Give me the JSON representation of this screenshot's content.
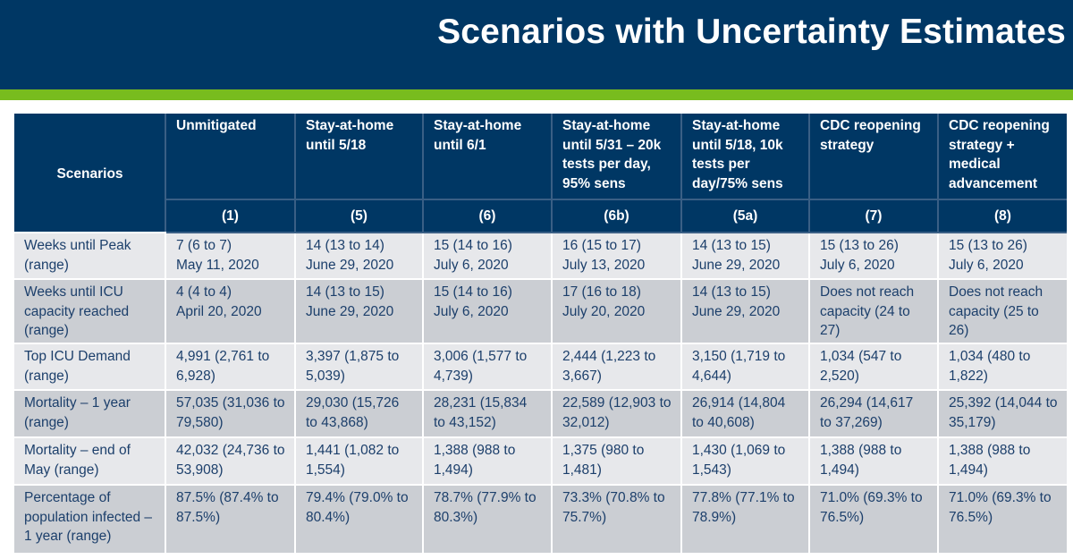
{
  "slide": {
    "title": "Scenarios with Uncertainty Estimates"
  },
  "table": {
    "corner_label": "Scenarios",
    "columns": [
      {
        "name": "Unmitigated",
        "code": "(1)"
      },
      {
        "name": "Stay-at-home until 5/18",
        "code": "(5)"
      },
      {
        "name": "Stay-at-home until 6/1",
        "code": "(6)"
      },
      {
        "name": "Stay-at-home until 5/31 – 20k tests per day, 95% sens",
        "code": "(6b)"
      },
      {
        "name": "Stay-at-home until 5/18, 10k tests per day/75% sens",
        "code": "(5a)"
      },
      {
        "name": "CDC reopening strategy",
        "code": "(7)"
      },
      {
        "name": "CDC reopening strategy + medical advancement",
        "code": "(8)"
      }
    ],
    "rows": [
      {
        "label": "Weeks until Peak (range)",
        "cells": [
          "7 (6 to 7)\nMay 11, 2020",
          "14 (13 to 14)\nJune 29, 2020",
          "15 (14 to 16)\nJuly 6, 2020",
          "16 (15 to 17)\nJuly 13, 2020",
          "14 (13 to 15)\nJune 29, 2020",
          "15 (13 to 26)\nJuly 6, 2020",
          "15 (13 to 26)\nJuly 6, 2020"
        ]
      },
      {
        "label": "Weeks until ICU capacity reached (range)",
        "cells": [
          "4 (4 to 4)\nApril 20, 2020",
          "14 (13 to 15)\nJune 29, 2020",
          "15 (14 to 16)\nJuly 6, 2020",
          "17 (16 to 18)\nJuly 20, 2020",
          "14 (13 to 15)\nJune 29, 2020",
          "Does not reach capacity (24 to 27)",
          "Does not reach capacity (25 to 26)"
        ]
      },
      {
        "label": "Top ICU Demand (range)",
        "cells": [
          "4,991 (2,761 to 6,928)",
          "3,397 (1,875 to 5,039)",
          "3,006 (1,577 to 4,739)",
          "2,444 (1,223 to 3,667)",
          "3,150 (1,719 to 4,644)",
          "1,034 (547 to 2,520)",
          "1,034 (480 to 1,822)"
        ]
      },
      {
        "label": "Mortality – 1 year (range)",
        "cells": [
          "57,035 (31,036 to 79,580)",
          "29,030 (15,726 to 43,868)",
          "28,231 (15,834 to 43,152)",
          "22,589 (12,903 to 32,012)",
          "26,914 (14,804 to 40,608)",
          "26,294 (14,617 to 37,269)",
          "25,392 (14,044 to 35,179)"
        ]
      },
      {
        "label": "Mortality – end of May (range)",
        "cells": [
          "42,032 (24,736 to 53,908)",
          "1,441 (1,082 to 1,554)",
          "1,388 (988 to 1,494)",
          "1,375 (980 to 1,481)",
          "1,430 (1,069 to 1,543)",
          "1,388 (988 to 1,494)",
          "1,388 (988 to 1,494)"
        ]
      },
      {
        "label": "Percentage of population infected – 1 year (range)",
        "cells": [
          "87.5% (87.4% to 87.5%)",
          "79.4% (79.0% to 80.4%)",
          "78.7% (77.9% to 80.3%)",
          "73.3% (70.8% to 75.7%)",
          "77.8% (77.1% to 78.9%)",
          "71.0% (69.3% to 76.5%)",
          "71.0% (69.3% to 76.5%)"
        ]
      }
    ]
  }
}
